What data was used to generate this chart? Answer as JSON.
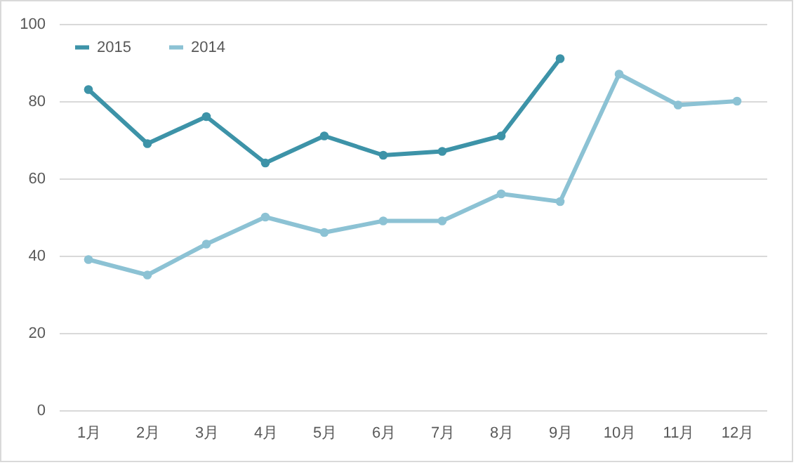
{
  "chart_data": {
    "type": "line",
    "categories": [
      "1月",
      "2月",
      "3月",
      "4月",
      "5月",
      "6月",
      "7月",
      "8月",
      "9月",
      "10月",
      "11月",
      "12月"
    ],
    "series": [
      {
        "name": "2015",
        "color": "#3d93a8",
        "values": [
          83,
          69,
          76,
          64,
          71,
          66,
          67,
          71,
          91,
          null,
          null,
          null
        ]
      },
      {
        "name": "2014",
        "color": "#8cc2d4",
        "values": [
          39,
          35,
          43,
          50,
          46,
          49,
          49,
          56,
          54,
          87,
          79,
          80
        ]
      }
    ],
    "ylim": [
      0,
      100
    ],
    "yticks": [
      0,
      20,
      40,
      60,
      80,
      100
    ],
    "grid": "y",
    "legend": "top left",
    "marker": "circle",
    "line_style": "solid"
  }
}
